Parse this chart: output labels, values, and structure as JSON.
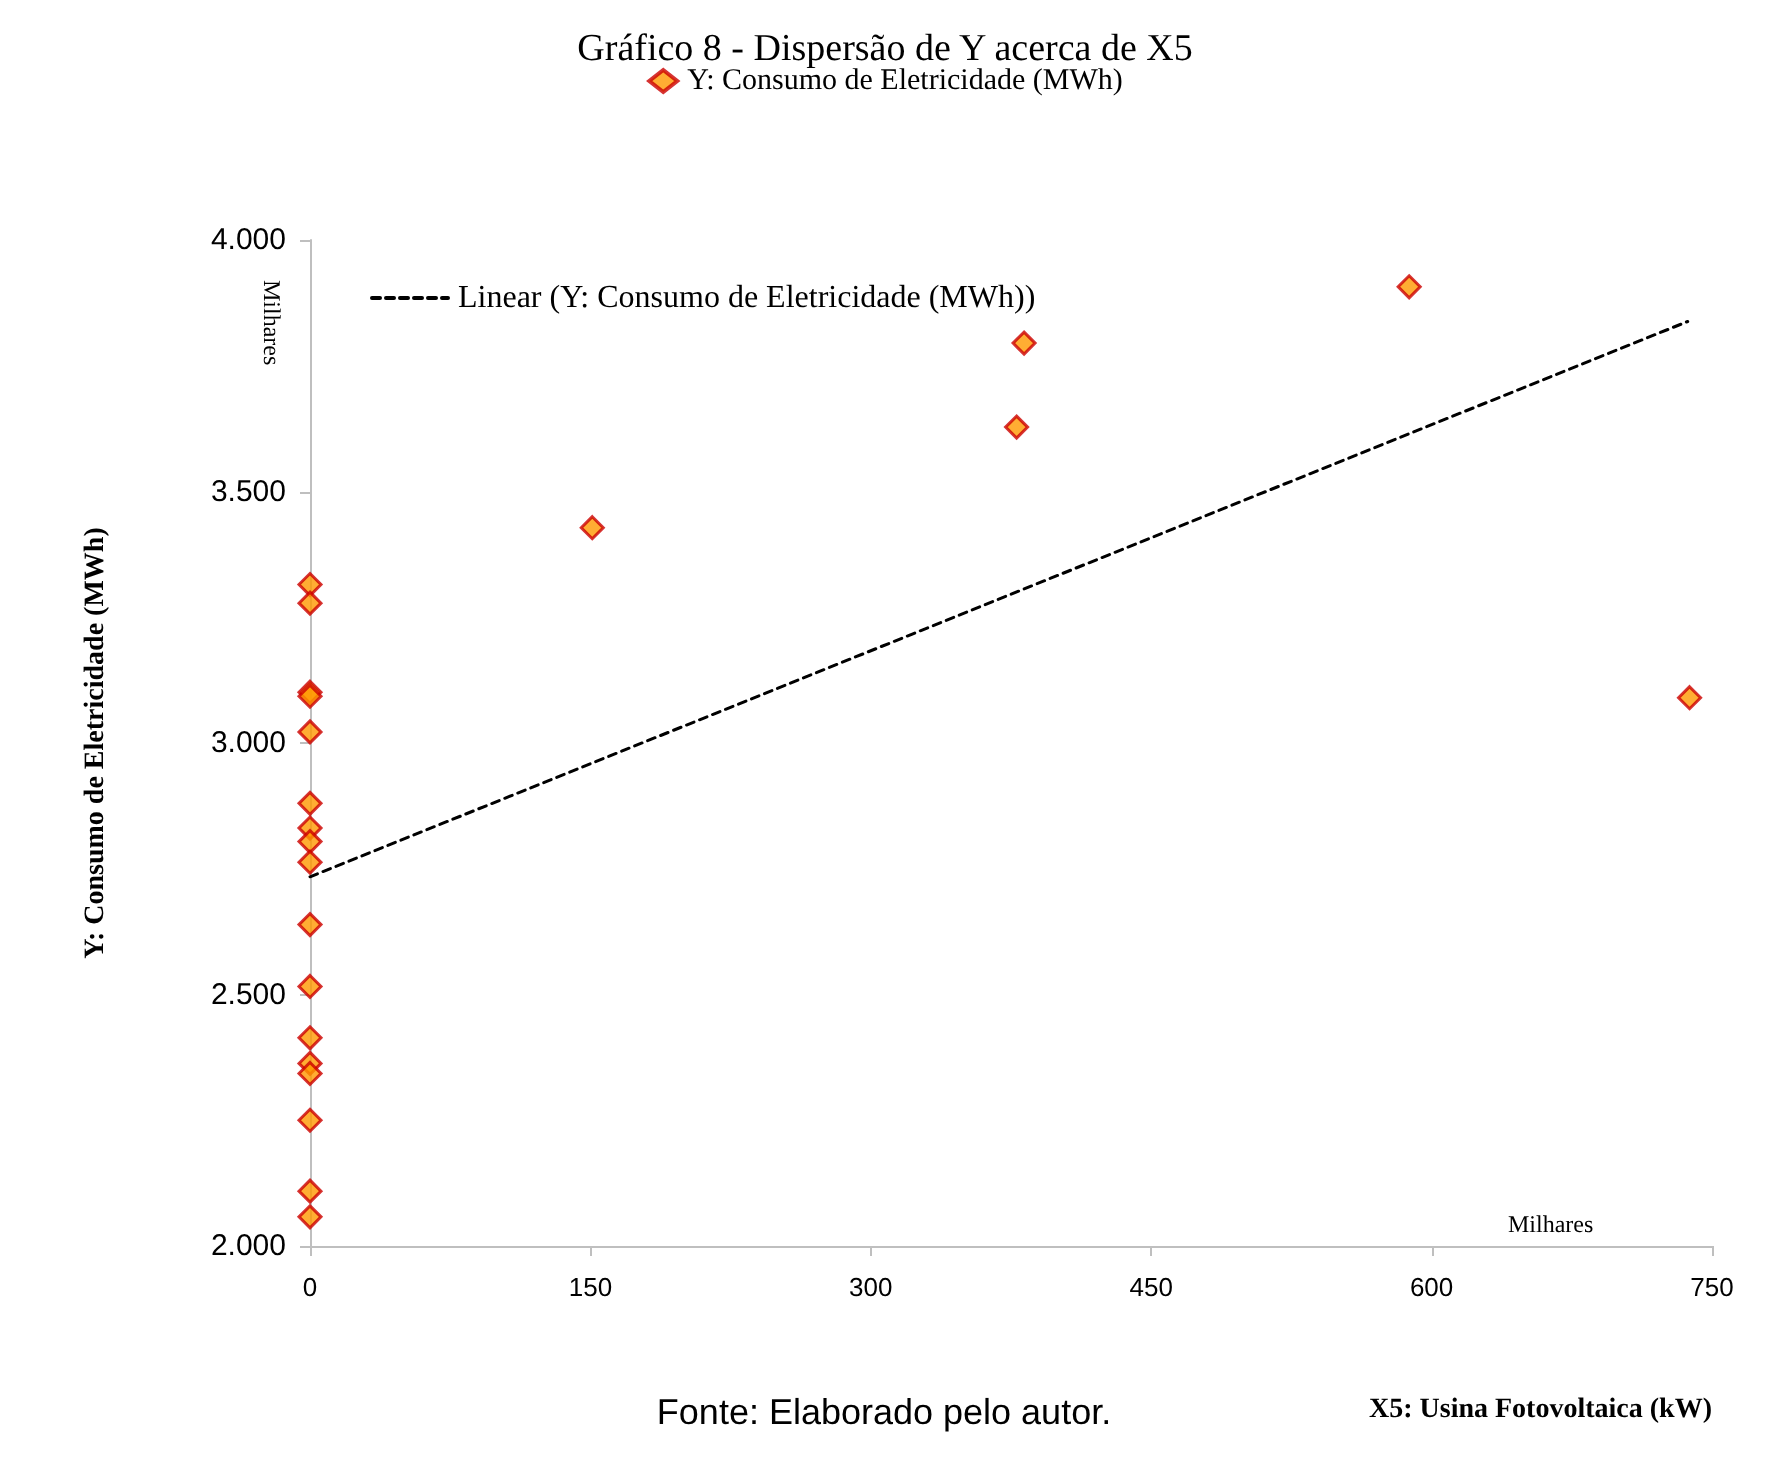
{
  "chart_data": {
    "type": "scatter",
    "title": "Gráfico 8 - Dispersão de Y acerca de X5",
    "xlabel": "X5: Usina Fotovoltaica (kW)",
    "ylabel": "Y: Consumo de Eletricidade (MWh)",
    "annotations": [
      "Milhares",
      "Milhares",
      "Fonte: Elaborado pelo autor."
    ],
    "series": [
      {
        "name": "Y: Consumo de Eletricidade (MWh)",
        "color": "#ff9900",
        "marker": "diamond",
        "x": [
          0,
          0,
          0,
          0,
          0,
          0,
          0,
          0,
          0,
          0,
          0,
          0,
          0,
          0,
          0,
          0,
          0,
          151,
          378,
          382,
          588,
          738
        ],
        "values": [
          3315,
          3278,
          3101,
          3093,
          3022,
          2880,
          2831,
          2804,
          2763,
          2639,
          2516,
          2414,
          2363,
          2343,
          2250,
          2109,
          2058,
          3428,
          3628,
          3795,
          3907,
          3090
        ]
      },
      {
        "name": "Linear (Y: Consumo de Eletricidade (MWh))",
        "type": "line",
        "color": "#000000",
        "marker": "none",
        "line_style": "dashed",
        "x": [
          0,
          737
        ],
        "values": [
          2734,
          3838
        ]
      }
    ],
    "xlim": [
      0,
      750
    ],
    "xticks": [
      0,
      150,
      300,
      450,
      600,
      750
    ],
    "ylim": [
      2000,
      4000
    ],
    "yticks": [
      {
        "value": 2000,
        "label": "2.000"
      },
      {
        "value": 2500,
        "label": "2.500"
      },
      {
        "value": 3000,
        "label": "3.000"
      },
      {
        "value": 3500,
        "label": "3.500"
      },
      {
        "value": 4000,
        "label": "4.000"
      }
    ],
    "grid": false,
    "legend": "top"
  }
}
